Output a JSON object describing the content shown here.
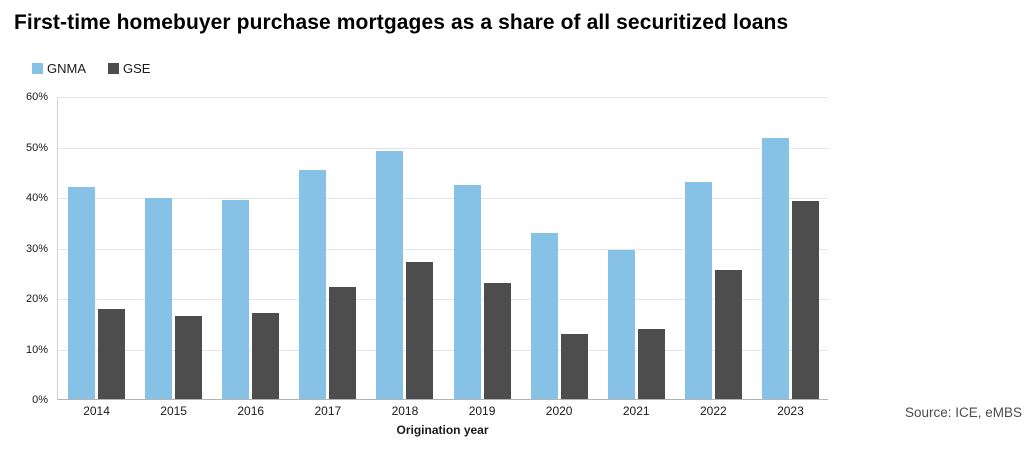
{
  "title": "First-time homebuyer purchase mortgages as a share of all securitized loans",
  "legend": {
    "items": [
      {
        "label": "GNMA",
        "color": "#85c2e6"
      },
      {
        "label": "GSE",
        "color": "#4d4d4d"
      }
    ]
  },
  "chart_data": {
    "type": "bar",
    "title": "First-time homebuyer purchase mortgages as a share of all securitized loans",
    "categories": [
      "2014",
      "2015",
      "2016",
      "2017",
      "2018",
      "2019",
      "2020",
      "2021",
      "2022",
      "2023"
    ],
    "series": [
      {
        "name": "GNMA",
        "color": "#85c2e6",
        "values": [
          41.9,
          39.9,
          39.5,
          45.4,
          49.2,
          42.3,
          32.9,
          29.5,
          43.0,
          51.6
        ]
      },
      {
        "name": "GSE",
        "color": "#4d4d4d",
        "values": [
          17.8,
          16.4,
          17.0,
          22.2,
          27.2,
          23.0,
          12.9,
          13.9,
          25.5,
          39.2
        ]
      }
    ],
    "xlabel": "Origination year",
    "ylabel": "",
    "ylim": [
      0,
      60
    ],
    "yticks": [
      0,
      10,
      20,
      30,
      40,
      50,
      60
    ],
    "ytick_labels": [
      "0%",
      "10%",
      "20%",
      "30%",
      "40%",
      "50%",
      "60%"
    ],
    "grid": "horizontal",
    "legend_position": "top-left"
  },
  "source": "Source: ICE, eMBS"
}
